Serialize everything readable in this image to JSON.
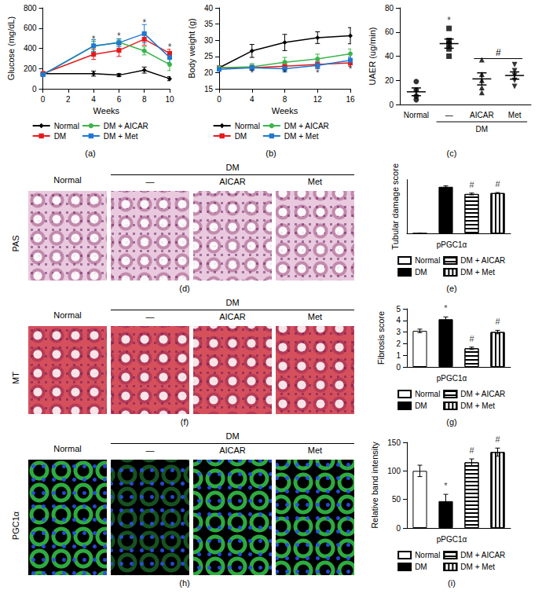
{
  "chart_data": [
    {
      "type": "line",
      "panel": "(a)",
      "y_label": "Glucose (mg/dL)",
      "x_label": "Weeks",
      "x": [
        0,
        4,
        6,
        8,
        10
      ],
      "xlim": [
        0,
        10
      ],
      "xticks": [
        0,
        2,
        4,
        6,
        8,
        10
      ],
      "ylim": [
        0,
        800
      ],
      "yticks": [
        0,
        200,
        400,
        600,
        800
      ],
      "grid": false,
      "legend": "bottom",
      "series": [
        {
          "name": "Normal",
          "color": "#000000",
          "marker": "diamond",
          "values": [
            150,
            150,
            135,
            185,
            100
          ],
          "errors": [
            15,
            25,
            15,
            30,
            20
          ]
        },
        {
          "name": "DM",
          "color": "#e41a1c",
          "marker": "square",
          "values": [
            150,
            340,
            380,
            490,
            350
          ],
          "errors": [
            20,
            50,
            60,
            60,
            40
          ]
        },
        {
          "name": "DM + AICAR",
          "color": "#3cb44b",
          "marker": "circle",
          "values": [
            140,
            420,
            460,
            375,
            240
          ],
          "errors": [
            15,
            50,
            30,
            40,
            60
          ]
        },
        {
          "name": "DM + Met",
          "color": "#1f78d1",
          "marker": "square",
          "values": [
            140,
            425,
            455,
            545,
            310
          ],
          "errors": [
            20,
            60,
            40,
            90,
            50
          ]
        }
      ],
      "annotations": [
        {
          "x": 4,
          "y": 490,
          "text": "*"
        },
        {
          "x": 6,
          "y": 520,
          "text": "*"
        },
        {
          "x": 8,
          "y": 650,
          "text": "*"
        },
        {
          "x": 10,
          "y": 410,
          "text": "*"
        }
      ]
    },
    {
      "type": "line",
      "panel": "(b)",
      "y_label": "Body weight (g)",
      "x_label": "Weeks",
      "x": [
        0,
        4,
        8,
        12,
        16
      ],
      "xlim": [
        0,
        16
      ],
      "xticks": [
        0,
        4,
        8,
        12,
        16
      ],
      "ylim": [
        15,
        40
      ],
      "yticks": [
        15,
        20,
        25,
        30,
        35,
        40
      ],
      "grid": false,
      "legend": "bottom",
      "series": [
        {
          "name": "Normal",
          "color": "#000000",
          "marker": "diamond",
          "values": [
            21.5,
            26.7,
            29.3,
            30.8,
            31.4
          ],
          "errors": [
            0.5,
            2,
            2.5,
            1.8,
            2.5
          ]
        },
        {
          "name": "DM",
          "color": "#e41a1c",
          "marker": "square",
          "values": [
            21.5,
            21.5,
            22.0,
            22.5,
            23.0
          ],
          "errors": [
            0.5,
            0.8,
            1,
            1,
            1
          ]
        },
        {
          "name": "DM + AICAR",
          "color": "#3cb44b",
          "marker": "circle",
          "values": [
            21.5,
            21.8,
            23.2,
            24.2,
            25.8
          ],
          "errors": [
            0.5,
            1,
            1.5,
            1.5,
            1.5
          ]
        },
        {
          "name": "DM + Met",
          "color": "#1f78d1",
          "marker": "square",
          "values": [
            21,
            21.5,
            21.2,
            22.2,
            23.8
          ],
          "errors": [
            0.5,
            0.8,
            1,
            1,
            1
          ]
        }
      ],
      "annotations": [
        {
          "x": 4,
          "y": 19.8,
          "text": "*"
        },
        {
          "x": 8,
          "y": 19.8,
          "text": "*"
        },
        {
          "x": 12,
          "y": 19.8,
          "text": "*"
        },
        {
          "x": 16,
          "y": 21,
          "text": "*"
        }
      ]
    },
    {
      "type": "scatter",
      "panel": "(c)",
      "y_label": "UAER (ug/min)",
      "categories": [
        "Normal",
        "—",
        "AICAR",
        "Met"
      ],
      "group_label": {
        "text": "DM",
        "categories": [
          "—",
          "AICAR",
          "Met"
        ]
      },
      "ylim": [
        0,
        80
      ],
      "yticks": [
        0,
        20,
        40,
        60,
        80
      ],
      "grid": false,
      "groups": [
        {
          "category": "Normal",
          "color": "#000000",
          "marker": "circle",
          "values": [
            19,
            12,
            7,
            4
          ],
          "mean": 10.5,
          "error": 3.2
        },
        {
          "category": "—",
          "color": "#000000",
          "marker": "square",
          "values": [
            63,
            53,
            50,
            46,
            40
          ],
          "mean": 50.4,
          "error": 3.8
        },
        {
          "category": "AICAR",
          "color": "#000000",
          "marker": "triangle",
          "values": [
            37,
            25,
            20,
            14,
            10
          ],
          "mean": 21.2,
          "error": 5
        },
        {
          "category": "Met",
          "color": "#000000",
          "marker": "triangle_down",
          "values": [
            33,
            28,
            24,
            20,
            15
          ],
          "mean": 24,
          "error": 3
        }
      ],
      "annotations": [
        {
          "category": "—",
          "y": 62,
          "text": "*"
        },
        {
          "categories": [
            "AICAR",
            "Met"
          ],
          "y": 38,
          "text": "#"
        }
      ]
    },
    {
      "type": "micrograph",
      "panel": "(d)",
      "row_label": "PAS",
      "columns": [
        "Normal",
        "—",
        "AICAR",
        "Met"
      ],
      "group_label": "DM",
      "color": "#e9c9de"
    },
    {
      "type": "bar",
      "panel": "(e)",
      "y_label": "Tubular damage score",
      "ylim": [
        0,
        3
      ],
      "tick_labels": false,
      "grid": false,
      "legend": "bottom",
      "legend_title": "pPGC1α",
      "series": [
        {
          "name": "Normal",
          "color": "#ffffff",
          "marker": "solid",
          "values": [
            0
          ],
          "errors": [
            0
          ]
        },
        {
          "name": "DM",
          "color": "#000000",
          "marker": "solid",
          "values": [
            2.6
          ],
          "errors": [
            0.05
          ]
        },
        {
          "name": "DM + AICAR",
          "color": "#ffffff",
          "marker": "horizontal",
          "values": [
            2.2
          ],
          "errors": [
            0.05
          ],
          "annotation": "#"
        },
        {
          "name": "DM + Met",
          "color": "#ffffff",
          "marker": "vertical",
          "values": [
            2.25
          ],
          "errors": [
            0.03
          ],
          "annotation": "#"
        }
      ]
    },
    {
      "type": "micrograph",
      "panel": "(f)",
      "row_label": "MT",
      "columns": [
        "Normal",
        "—",
        "AICAR",
        "Met"
      ],
      "group_label": "DM",
      "color": "#d6505c"
    },
    {
      "type": "bar",
      "panel": "(g)",
      "y_label": "Fibrosis score",
      "ylim": [
        0,
        5
      ],
      "yticks": [
        0,
        1,
        2,
        3,
        4,
        5
      ],
      "tick_labels": "y",
      "grid": false,
      "legend": "bottom",
      "legend_title": "pPGC1α",
      "series": [
        {
          "name": "Normal",
          "color": "#ffffff",
          "marker": "solid",
          "values": [
            3.1
          ],
          "errors": [
            0.15
          ]
        },
        {
          "name": "DM",
          "color": "#000000",
          "marker": "solid",
          "values": [
            4.1
          ],
          "errors": [
            0.2
          ],
          "annotation": "*"
        },
        {
          "name": "DM + AICAR",
          "color": "#ffffff",
          "marker": "horizontal",
          "values": [
            1.6
          ],
          "errors": [
            0.1
          ],
          "annotation": "#"
        },
        {
          "name": "DM + Met",
          "color": "#ffffff",
          "marker": "vertical",
          "values": [
            3.0
          ],
          "errors": [
            0.15
          ],
          "annotation": "#"
        }
      ]
    },
    {
      "type": "micrograph",
      "panel": "(h)",
      "row_label": "PGC1α",
      "columns": [
        "Normal",
        "—",
        "AICAR",
        "Met"
      ],
      "group_label": "DM",
      "color": "#000000"
    },
    {
      "type": "bar",
      "panel": "(i)",
      "y_label": "Relative band intensity",
      "ylim": [
        0,
        150
      ],
      "yticks": [
        0,
        50,
        100,
        150
      ],
      "tick_labels": "y",
      "grid": false,
      "legend": "bottom",
      "legend_title": "pPGC1α",
      "series": [
        {
          "name": "Normal",
          "color": "#ffffff",
          "marker": "solid",
          "values": [
            100
          ],
          "errors": [
            10
          ]
        },
        {
          "name": "DM",
          "color": "#000000",
          "marker": "solid",
          "values": [
            47
          ],
          "errors": [
            12
          ],
          "annotation": "*"
        },
        {
          "name": "DM + AICAR",
          "color": "#ffffff",
          "marker": "horizontal",
          "values": [
            115
          ],
          "errors": [
            6
          ],
          "annotation": "#"
        },
        {
          "name": "DM + Met",
          "color": "#ffffff",
          "marker": "vertical",
          "values": [
            133
          ],
          "errors": [
            7
          ],
          "annotation": "#"
        }
      ]
    }
  ]
}
